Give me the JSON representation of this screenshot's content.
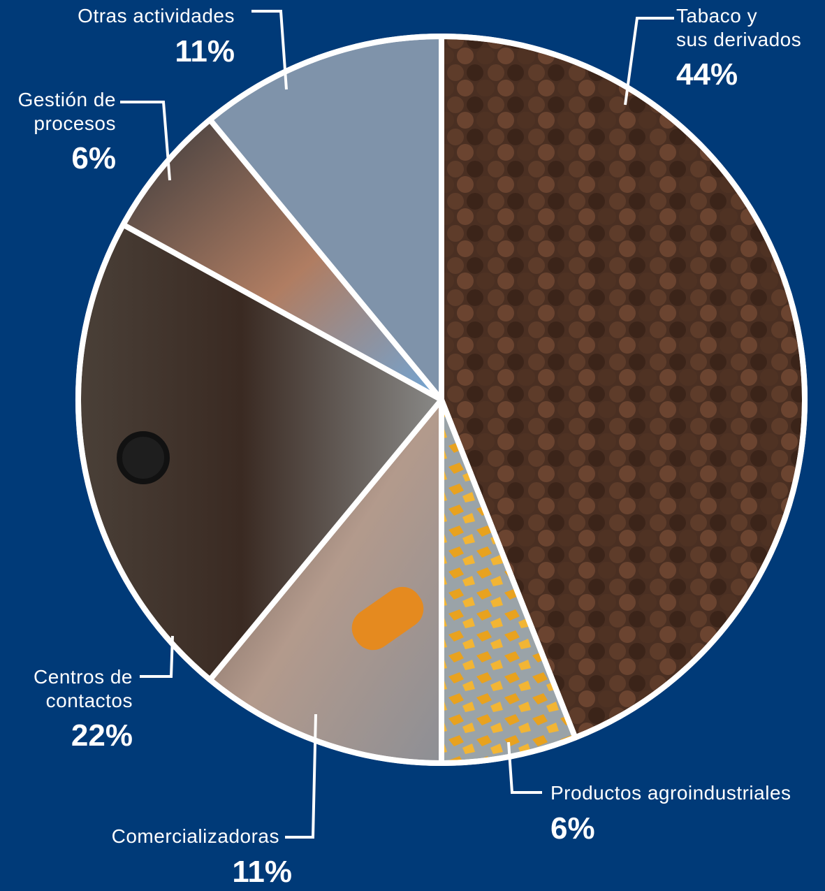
{
  "chart_data": {
    "type": "pie",
    "title": "",
    "slices": [
      {
        "label": "Tabaco y sus derivados",
        "value": 44,
        "display": "44%",
        "photo": "cigars"
      },
      {
        "label": "Productos agroindustriales",
        "value": 6,
        "display": "6%",
        "photo": "dried-mango"
      },
      {
        "label": "Comercializadoras",
        "value": 11,
        "display": "11%",
        "photo": "barcode-scanning"
      },
      {
        "label": "Centros de contactos",
        "value": 22,
        "display": "22%",
        "photo": "call-center-agent"
      },
      {
        "label": "Gestión de procesos",
        "value": 6,
        "display": "6%",
        "photo": "hands-on-chart"
      },
      {
        "label": "Otras actividades",
        "value": 11,
        "display": "11%",
        "photo": "none"
      }
    ],
    "colors": {
      "background": "#003a78",
      "divider": "#ffffff",
      "otras": "#7f93aa",
      "leader": "#ffffff"
    }
  },
  "labels": {
    "tabaco": {
      "line1": "Tabaco y",
      "line2": "sus derivados",
      "pct": "44%"
    },
    "agro": {
      "line1": "Productos agroindustriales",
      "pct": "6%"
    },
    "comer": {
      "line1": "Comercializadoras",
      "pct": "11%"
    },
    "centros": {
      "line1": "Centros de",
      "line2": "contactos",
      "pct": "22%"
    },
    "gestion": {
      "line1": "Gestión de",
      "line2": "procesos",
      "pct": "6%"
    },
    "otras": {
      "line1": "Otras actividades",
      "pct": "11%"
    }
  }
}
